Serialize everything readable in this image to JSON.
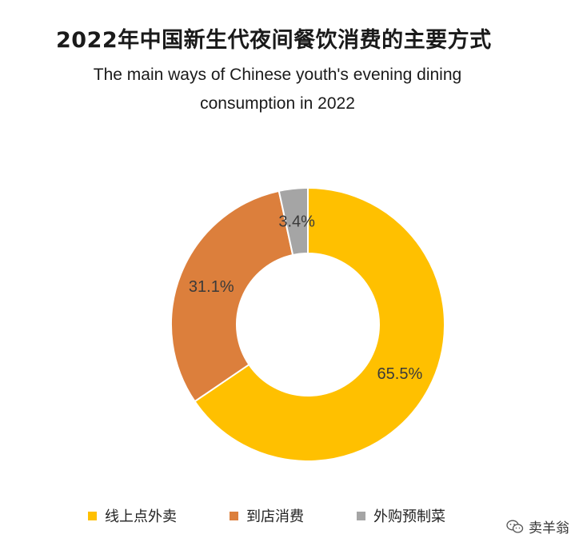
{
  "chart_data": {
    "type": "pie",
    "donut": true,
    "title": "2022年中国新生代夜间餐饮消费的主要方式",
    "subtitle_lines": [
      "The main ways of Chinese youth's evening dining",
      "consumption in 2022"
    ],
    "categories": [
      "线上点外卖",
      "到店消费",
      "外购预制菜"
    ],
    "values": [
      65.5,
      31.1,
      3.4
    ],
    "value_labels": [
      "65.5%",
      "31.1%",
      "3.4%"
    ],
    "colors": [
      "#FFC000",
      "#DC7F3C",
      "#A5A5A5"
    ],
    "legend_position": "bottom"
  },
  "watermark": {
    "text": "卖羊翁",
    "icon": "wechat-icon"
  }
}
